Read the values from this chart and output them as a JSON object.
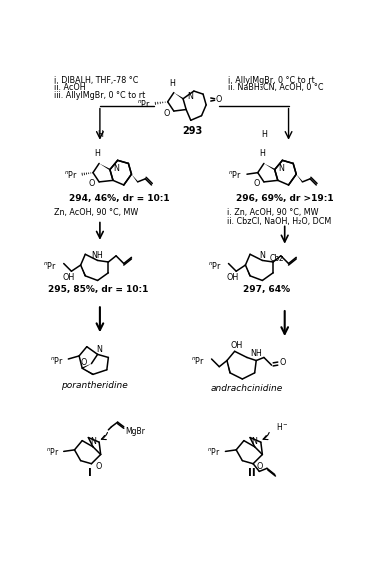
{
  "background_color": "#ffffff",
  "figsize": [
    3.91,
    5.79
  ],
  "dpi": 100,
  "left_conditions": [
    "i. DIBALH, THF,-78 °C",
    "ii. AcOH",
    "iii. AllylMgBr, 0 °C to rt"
  ],
  "right_conditions_top": [
    "i. AllylMgBr, 0 °C to rt",
    "ii. NaBH₃CN, AcOH, 0 °C"
  ],
  "right_conditions_mid": [
    "i. Zn, AcOH, 90 °C, MW",
    "ii. CbzCl, NaOH, H₂O, DCM"
  ],
  "left_conditions_mid": "Zn, AcOH, 90 °C, MW",
  "compound_293": "293",
  "compound_294": "294, 46%, dr = 10:1",
  "compound_295": "295, 85%, dr = 10:1",
  "compound_296": "296, 69%, dr >19:1",
  "compound_297": "297, 64%",
  "product_left": "porantheridine",
  "product_right": "andrachcinidine",
  "label_I": "I",
  "label_II": "II"
}
